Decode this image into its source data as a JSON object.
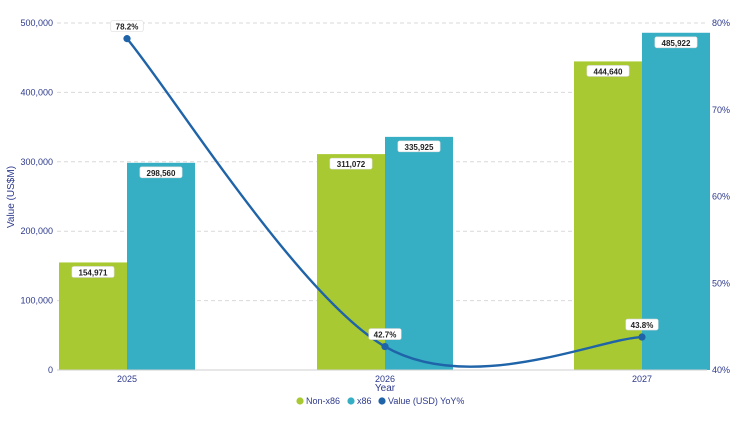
{
  "chart_data": {
    "type": "bar",
    "xlabel": "Year",
    "ylabel": "Value (US$M)",
    "categories": [
      "2025",
      "2026",
      "2027"
    ],
    "ylim": [
      0,
      500000
    ],
    "y_ticks": [
      "0",
      "100,000",
      "200,000",
      "300,000",
      "400,000",
      "500,000"
    ],
    "y2lim": [
      40,
      80
    ],
    "y2_ticks": [
      "40%",
      "50%",
      "60%",
      "70%",
      "80%"
    ],
    "grid": true,
    "legend_position": "bottom",
    "series": [
      {
        "name": "Non-x86",
        "type": "bar",
        "axis": "left",
        "color": "#a8c932",
        "values": [
          154971,
          311072,
          444640
        ],
        "labels": [
          "154,971",
          "311,072",
          "444,640"
        ]
      },
      {
        "name": "x86",
        "type": "bar",
        "axis": "left",
        "color": "#36afc4",
        "values": [
          298560,
          335925,
          485922
        ],
        "labels": [
          "298,560",
          "335,925",
          "485,922"
        ]
      },
      {
        "name": "Value (USD) YoY%",
        "type": "line",
        "axis": "right",
        "color": "#1f63a8",
        "values": [
          78.2,
          42.7,
          43.8
        ],
        "labels": [
          "78.2%",
          "42.7%",
          "43.8%"
        ]
      }
    ]
  }
}
